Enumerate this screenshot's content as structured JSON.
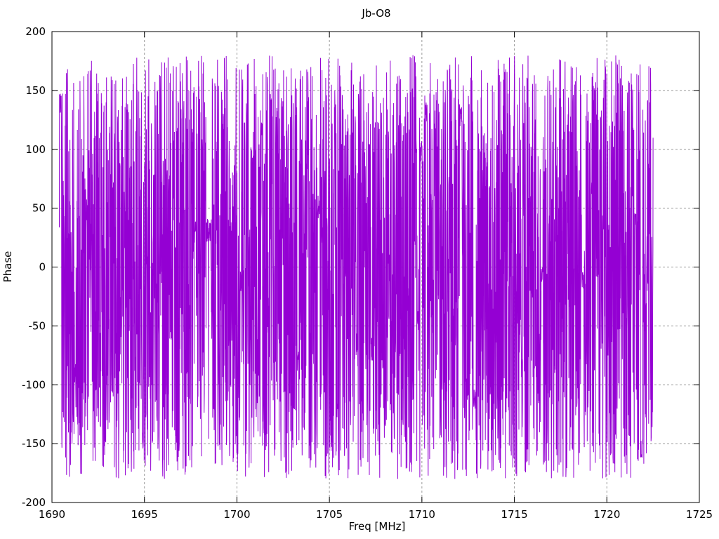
{
  "figure": {
    "title": "Jb-O8",
    "xlabel": "Freq [MHz]",
    "ylabel": "Phase"
  },
  "colors": {
    "background": "#ffffff",
    "axis": "#000000",
    "grid": "#9a9a9a",
    "text": "#000000",
    "series": "#9400d3"
  },
  "chart_data": {
    "type": "line",
    "title": "Jb-O8",
    "xlabel": "Freq [MHz]",
    "ylabel": "Phase",
    "xlim": [
      1690,
      1725
    ],
    "ylim": [
      -200,
      200
    ],
    "x_ticks": [
      1690,
      1695,
      1700,
      1705,
      1710,
      1715,
      1720,
      1725
    ],
    "y_ticks": [
      -200,
      -150,
      -100,
      -50,
      0,
      50,
      100,
      150,
      200
    ],
    "grid": true,
    "grid_style": "dashed-gray",
    "ticks_mirrored_all_borders": true,
    "legend": "none",
    "series": [
      {
        "name": "phase",
        "color": "#9400d3",
        "x_start": 1690.4,
        "x_end": 1722.5,
        "n_points": 3200,
        "y_min": -180,
        "y_max": 180,
        "character": "uniformly distributed wrapped interferometric phase noise spanning ±180 degrees across the whole band; renders as a dense solid violet band with ragged upper/lower edges (spikes reaching ±180) and occasional narrow white vertical gaps where phase stays briefly coherent",
        "seed": 20240817
      }
    ]
  }
}
